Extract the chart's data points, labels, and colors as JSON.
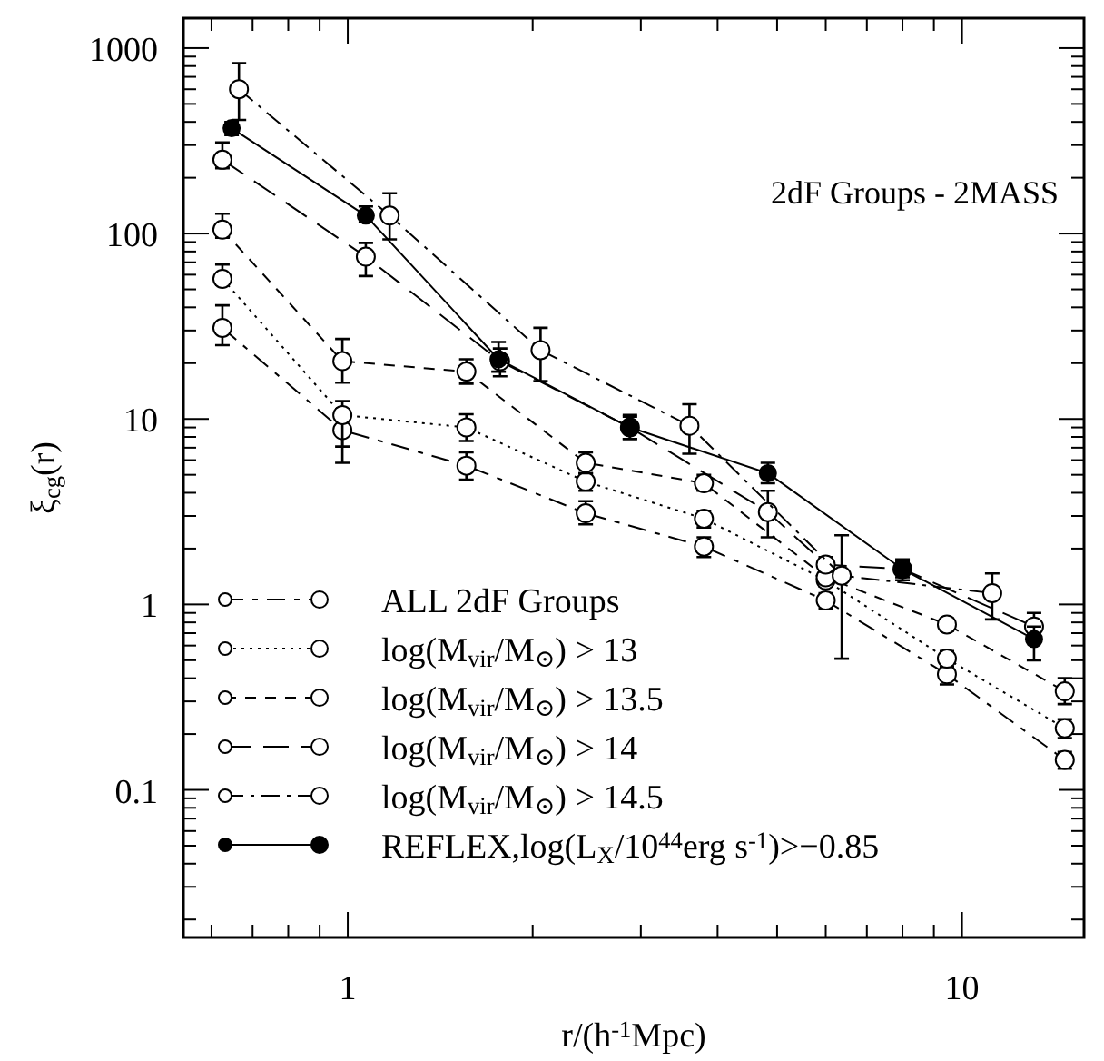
{
  "chart_data": {
    "type": "line",
    "xlabel": "r/(h$^{-1}$Mpc)",
    "ylabel": "ξ$_{cg}$(r)",
    "annotations": [
      "2dF Groups - 2MASS"
    ],
    "log": "xy",
    "xlim": [
      0.54,
      15.8
    ],
    "ylim": [
      0.016,
      1450
    ],
    "xticks": [
      {
        "value": 0.6,
        "label": null
      },
      {
        "value": 0.7,
        "label": null
      },
      {
        "value": 0.8,
        "label": null
      },
      {
        "value": 0.9,
        "label": null
      },
      1,
      {
        "value": 2,
        "label": null
      },
      {
        "value": 3,
        "label": null
      },
      {
        "value": 4,
        "label": null
      },
      {
        "value": 5,
        "label": null
      },
      {
        "value": 6,
        "label": null
      },
      {
        "value": 7,
        "label": null
      },
      {
        "value": 8,
        "label": null
      },
      {
        "value": 9,
        "label": null
      },
      10
    ],
    "yticks": [
      {
        "value": 0.02,
        "label": null
      },
      {
        "value": 0.03,
        "label": null
      },
      {
        "value": 0.04,
        "label": null
      },
      {
        "value": 0.05,
        "label": null
      },
      {
        "value": 0.06,
        "label": null
      },
      {
        "value": 0.07,
        "label": null
      },
      {
        "value": 0.08,
        "label": null
      },
      {
        "value": 0.09,
        "label": null
      },
      0.1,
      {
        "value": 0.2,
        "label": null
      },
      {
        "value": 0.3,
        "label": null
      },
      {
        "value": 0.4,
        "label": null
      },
      {
        "value": 0.5,
        "label": null
      },
      {
        "value": 0.6,
        "label": null
      },
      {
        "value": 0.7,
        "label": null
      },
      {
        "value": 0.8,
        "label": null
      },
      {
        "value": 0.9,
        "label": null
      },
      1,
      {
        "value": 2,
        "label": null
      },
      {
        "value": 3,
        "label": null
      },
      {
        "value": 4,
        "label": null
      },
      {
        "value": 5,
        "label": null
      },
      {
        "value": 6,
        "label": null
      },
      {
        "value": 7,
        "label": null
      },
      {
        "value": 8,
        "label": null
      },
      {
        "value": 9,
        "label": null
      },
      10,
      {
        "value": 20,
        "label": null
      },
      {
        "value": 30,
        "label": null
      },
      {
        "value": 40,
        "label": null
      },
      {
        "value": 50,
        "label": null
      },
      {
        "value": 60,
        "label": null
      },
      {
        "value": 70,
        "label": null
      },
      {
        "value": 80,
        "label": null
      },
      {
        "value": 90,
        "label": null
      },
      100,
      {
        "value": 200,
        "label": null
      },
      {
        "value": 300,
        "label": null
      },
      {
        "value": 400,
        "label": null
      },
      {
        "value": 500,
        "label": null
      },
      {
        "value": 600,
        "label": null
      },
      {
        "value": 700,
        "label": null
      },
      {
        "value": 800,
        "label": null
      },
      {
        "value": 900,
        "label": null
      },
      1000
    ],
    "grid": false,
    "legend": "bottom left",
    "marker": "circle",
    "series": [
      {
        "name": "ALL 2dF Groups",
        "color": "#000000",
        "line_style": "dashed",
        "x": [
          0.625,
          0.98,
          1.56,
          2.44,
          3.8,
          6.0,
          9.45,
          14.7
        ],
        "values": [
          31,
          8.7,
          5.6,
          3.1,
          2.05,
          1.05,
          0.42,
          0.145
        ],
        "errors": [
          [
            25,
            41
          ],
          [
            5.8,
            11.3
          ],
          [
            4.7,
            6.6
          ],
          [
            2.7,
            3.6
          ],
          [
            1.8,
            2.3
          ],
          [
            0.95,
            1.15
          ],
          [
            0.37,
            0.48
          ],
          [
            0.13,
            0.16
          ]
        ]
      },
      {
        "name": "log(M$_{vir}$/M$_{⊙}$) > 13",
        "color": "#000000",
        "line_style": "dotted",
        "x": [
          0.625,
          0.98,
          1.56,
          2.44,
          3.8,
          6.0,
          9.45,
          14.7
        ],
        "values": [
          57,
          10.5,
          9.0,
          4.6,
          2.9,
          1.35,
          0.51,
          0.215
        ],
        "errors": [
          [
            53,
            68
          ],
          [
            7.1,
            12.5
          ],
          [
            7.6,
            10.6
          ],
          [
            4.1,
            5.1
          ],
          [
            2.6,
            3.2
          ],
          [
            1.25,
            1.45
          ],
          [
            0.46,
            0.56
          ],
          [
            0.19,
            0.24
          ]
        ]
      },
      {
        "name": "log(M$_{vir}$/M$_{⊙}$) > 13.5",
        "color": "#000000",
        "line_style": "dashed",
        "x": [
          0.625,
          0.98,
          1.56,
          2.44,
          3.8,
          6.0,
          9.45,
          14.7
        ],
        "values": [
          105,
          20.5,
          18,
          5.8,
          4.5,
          1.4,
          0.78,
          0.34
        ],
        "errors": [
          [
            95,
            128
          ],
          [
            15.7,
            27
          ],
          [
            15.5,
            21
          ],
          [
            5.1,
            6.6
          ],
          [
            4.1,
            5.0
          ],
          [
            1.3,
            1.5
          ],
          [
            0.72,
            0.84
          ],
          [
            0.29,
            0.4
          ]
        ]
      },
      {
        "name": "log(M$_{vir}$/M$_{⊙}$) > 14",
        "color": "#000000",
        "line_style": "dashed",
        "x": [
          0.625,
          1.07,
          1.77,
          2.88,
          4.83,
          6.0,
          8.0,
          13.1
        ],
        "values": [
          250,
          75,
          20.5,
          9,
          3.15,
          1.64,
          1.55,
          0.76
        ],
        "errors": [
          [
            225,
            310
          ],
          [
            59,
            89
          ],
          [
            17,
            24
          ],
          [
            7.8,
            10.3
          ],
          [
            2.3,
            4.1
          ],
          [
            1.5,
            1.8
          ],
          [
            1.4,
            1.7
          ],
          [
            0.74,
            0.9
          ]
        ]
      },
      {
        "name": "log(M$_{vir}$/M$_{⊙}$) > 14.5",
        "color": "#000000",
        "line_style": "dashed",
        "x": [
          0.665,
          1.17,
          2.06,
          3.6,
          6.37,
          11.2
        ],
        "values": [
          600,
          125,
          23.5,
          9.2,
          1.43,
          1.15
        ],
        "errors": [
          [
            410,
            830
          ],
          [
            93,
            165
          ],
          [
            16,
            31
          ],
          [
            6.5,
            12
          ],
          [
            0.51,
            2.36
          ],
          [
            0.83,
            1.47
          ]
        ]
      },
      {
        "name": "REFLEX,log(L$_{X}$/10$^{44}$erg s$^{-1}$)>−0.85",
        "color": "#000000",
        "line_style": "solid",
        "x": [
          0.647,
          1.07,
          1.76,
          2.88,
          4.83,
          8.0,
          13.1
        ],
        "values": [
          370,
          125,
          21,
          9,
          5.1,
          1.55,
          0.65
        ],
        "errors": [
          [
            340,
            400
          ],
          [
            115,
            140
          ],
          [
            18,
            26
          ],
          [
            7.8,
            10.5
          ],
          [
            4.5,
            5.8
          ],
          [
            1.35,
            1.75
          ],
          [
            0.5,
            0.76
          ]
        ]
      }
    ]
  }
}
